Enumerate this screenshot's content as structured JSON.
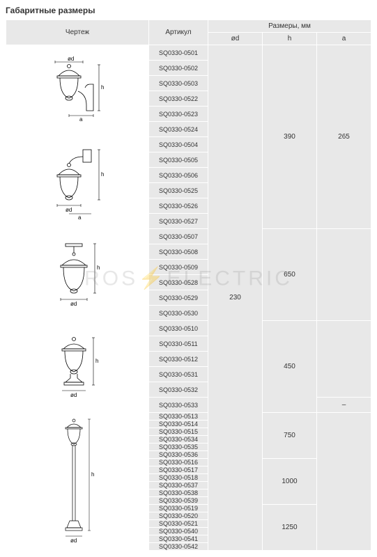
{
  "title": "Габаритные размеры",
  "watermark_left": "ROS",
  "watermark_right": "ELECTRIC",
  "headers": {
    "drawing": "Чертеж",
    "article": "Артикул",
    "dimensions_group": "Размеры, мм",
    "od": "ød",
    "h": "h",
    "a": "a"
  },
  "colors": {
    "header_bg": "#e8e8e8",
    "cell_bg": "#e8e8e8",
    "border": "#ffffff",
    "text": "#333333"
  },
  "articles": [
    "SQ0330-0501",
    "SQ0330-0502",
    "SQ0330-0503",
    "SQ0330-0522",
    "SQ0330-0523",
    "SQ0330-0524",
    "SQ0330-0504",
    "SQ0330-0505",
    "SQ0330-0506",
    "SQ0330-0525",
    "SQ0330-0526",
    "SQ0330-0527",
    "SQ0330-0507",
    "SQ0330-0508",
    "SQ0330-0509",
    "SQ0330-0528",
    "SQ0330-0529",
    "SQ0330-0530",
    "SQ0330-0510",
    "SQ0330-0511",
    "SQ0330-0512",
    "SQ0330-0531",
    "SQ0330-0532",
    "SQ0330-0533",
    "SQ0330-0513",
    "SQ0330-0514",
    "SQ0330-0515",
    "SQ0330-0534",
    "SQ0330-0535",
    "SQ0330-0536",
    "SQ0330-0516",
    "SQ0330-0517",
    "SQ0330-0518",
    "SQ0330-0537",
    "SQ0330-0538",
    "SQ0330-0539",
    "SQ0330-0519",
    "SQ0330-0520",
    "SQ0330-0521",
    "SQ0330-0540",
    "SQ0330-0541",
    "SQ0330-0542"
  ],
  "drawings": [
    {
      "svg": "lamp_up",
      "rowspan": 6
    },
    {
      "svg": "lamp_down",
      "rowspan": 6
    },
    {
      "svg": "lamp_pendant",
      "rowspan": 6
    },
    {
      "svg": "lamp_pedestal",
      "rowspan": 6
    },
    {
      "svg": "lamp_post",
      "rowspan": 18
    }
  ],
  "dim_od": [
    {
      "value": "230",
      "rowspan": 42
    }
  ],
  "dim_h": [
    {
      "value": "390",
      "rowspan": 12
    },
    {
      "value": "650",
      "rowspan": 6
    },
    {
      "value": "450",
      "rowspan": 6
    },
    {
      "value": "750",
      "rowspan": 6
    },
    {
      "value": "1000",
      "rowspan": 6
    },
    {
      "value": "1250",
      "rowspan": 6
    }
  ],
  "dim_a": [
    {
      "value": "265",
      "rowspan": 12
    },
    {
      "value": "",
      "rowspan": 6
    },
    {
      "value": "",
      "rowspan": 5
    },
    {
      "value": "–",
      "rowspan": 1
    },
    {
      "value": "",
      "rowspan": 18
    }
  ],
  "row_heights": {
    "group_1_4": 22,
    "group_5_7": 11
  }
}
